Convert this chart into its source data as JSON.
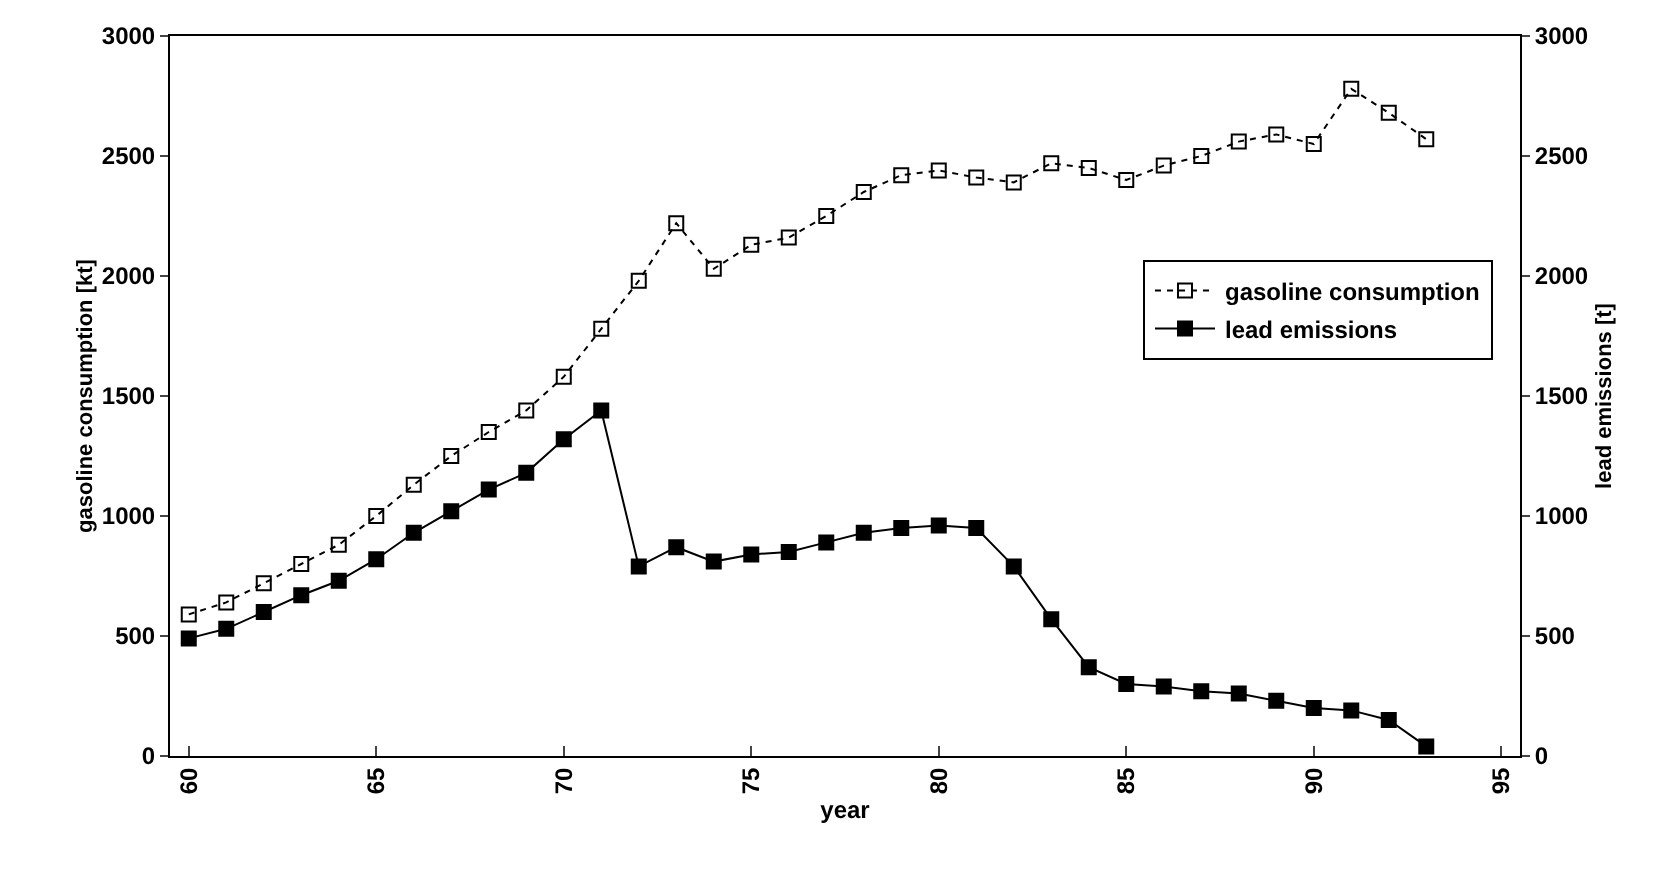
{
  "chart_data": {
    "type": "line",
    "x": [
      60,
      61,
      62,
      63,
      64,
      65,
      66,
      67,
      68,
      69,
      70,
      71,
      72,
      73,
      74,
      75,
      76,
      77,
      78,
      79,
      80,
      81,
      82,
      83,
      84,
      85,
      86,
      87,
      88,
      89,
      90,
      91,
      92,
      93
    ],
    "series": [
      {
        "name": "gasoline consumption",
        "color": "#000000",
        "marker": "square-open",
        "line_style": "dotted",
        "values": [
          590,
          640,
          720,
          800,
          880,
          1000,
          1130,
          1250,
          1350,
          1440,
          1580,
          1780,
          1980,
          2220,
          2030,
          2130,
          2160,
          2250,
          2350,
          2420,
          2440,
          2410,
          2390,
          2470,
          2450,
          2400,
          2460,
          2500,
          2560,
          2590,
          2550,
          2780,
          2680,
          2570
        ]
      },
      {
        "name": "lead emissions",
        "color": "#000000",
        "marker": "square",
        "line_style": "solid",
        "axis": "y2",
        "values": [
          490,
          530,
          600,
          670,
          730,
          820,
          930,
          1020,
          1110,
          1180,
          1320,
          1440,
          790,
          870,
          810,
          840,
          850,
          890,
          930,
          950,
          960,
          950,
          790,
          570,
          370,
          300,
          290,
          270,
          260,
          230,
          200,
          190,
          150,
          40
        ]
      }
    ],
    "xlabel": "year",
    "ylabel": "gasoline consumption [kt]",
    "y2label": "lead emissions [t]",
    "xlim": [
      59.5,
      95.5
    ],
    "xticks": [
      60,
      65,
      70,
      75,
      80,
      85,
      90,
      95
    ],
    "ylim": [
      0,
      3000
    ],
    "yticks": [
      0,
      500,
      1000,
      1500,
      2000,
      2500,
      3000
    ],
    "y2lim": [
      0,
      3000
    ],
    "y2ticks": [
      0,
      500,
      1000,
      1500,
      2000,
      2500,
      3000
    ],
    "grid": false,
    "legend": "right"
  }
}
